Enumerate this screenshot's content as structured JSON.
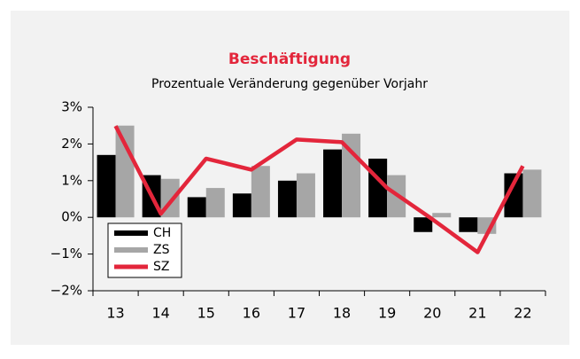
{
  "chart_data": {
    "type": "bar_line",
    "title": "Beschäftigung",
    "subtitle": "Prozentuale Veränderung gegenüber Vorjahr",
    "categories": [
      "13",
      "14",
      "15",
      "16",
      "17",
      "18",
      "19",
      "20",
      "21",
      "22"
    ],
    "series": [
      {
        "name": "CH",
        "color": "#000000",
        "kind": "bar",
        "values": [
          1.7,
          1.15,
          0.55,
          0.65,
          1.0,
          1.85,
          1.6,
          -0.4,
          -0.4,
          1.2
        ]
      },
      {
        "name": "ZS",
        "color": "#a6a6a6",
        "kind": "bar",
        "values": [
          2.5,
          1.05,
          0.8,
          1.4,
          1.2,
          2.28,
          1.15,
          0.12,
          -0.45,
          1.3
        ]
      },
      {
        "name": "SZ",
        "color": "#e3263b",
        "kind": "line",
        "values": [
          2.49,
          0.1,
          1.6,
          1.3,
          2.12,
          2.05,
          0.8,
          -0.05,
          -0.95,
          1.4
        ]
      }
    ],
    "ylim": [
      -2,
      3
    ],
    "yticks": [
      {
        "value": 3,
        "label": "3%"
      },
      {
        "value": 2,
        "label": "2%"
      },
      {
        "value": 1,
        "label": "1%"
      },
      {
        "value": 0,
        "label": "0%"
      },
      {
        "value": -1,
        "label": "−1%"
      },
      {
        "value": -2,
        "label": "−2%"
      }
    ],
    "legend": "lower left"
  }
}
